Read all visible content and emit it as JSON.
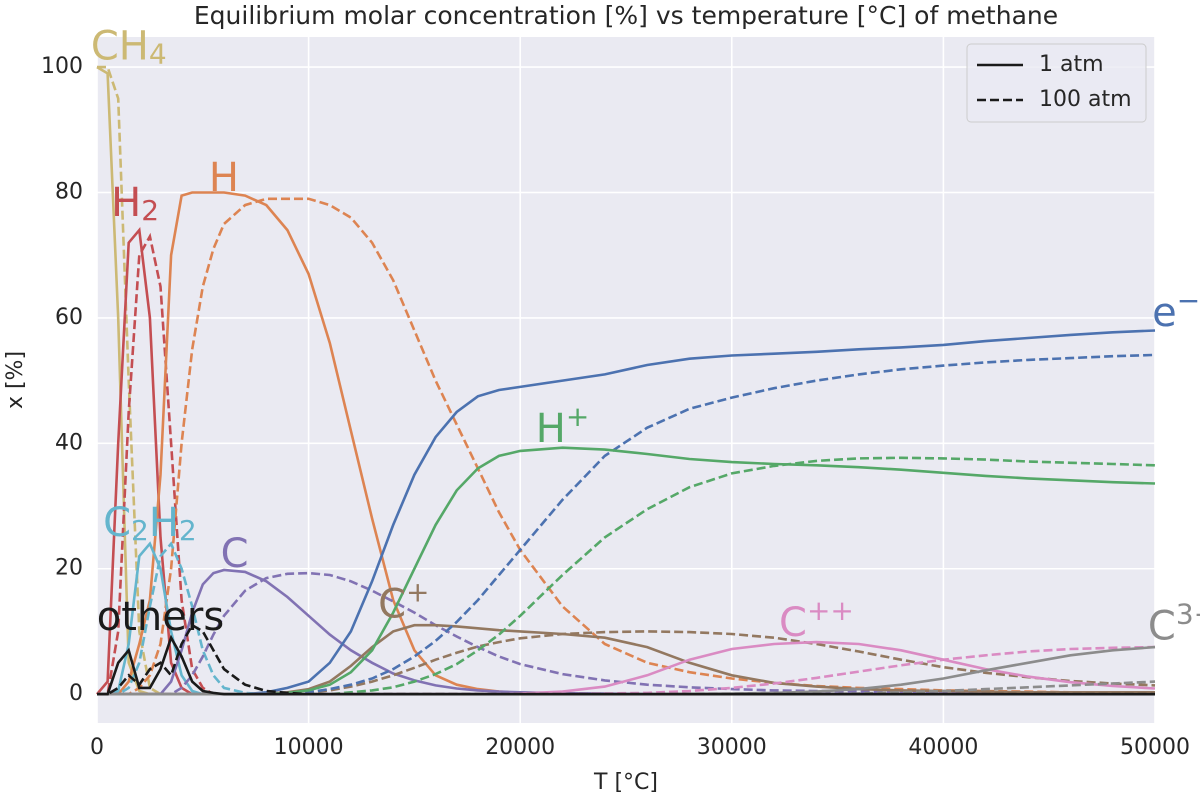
{
  "chart_data": {
    "type": "line",
    "title": "Equilibrium molar concentration [%] vs temperature [°C] of methane",
    "xlabel": "T [°C]",
    "ylabel": "x [%]",
    "xlim": [
      0,
      50000
    ],
    "ylim": [
      -4.6,
      104.8
    ],
    "xticks": [
      0,
      10000,
      20000,
      30000,
      40000,
      50000
    ],
    "yticks": [
      0,
      20,
      40,
      60,
      80,
      100
    ],
    "grid": true,
    "legend": {
      "loc": "upper right",
      "entries": [
        {
          "label": "1 atm",
          "dash": "solid"
        },
        {
          "label": "100 atm",
          "dash": "dashed"
        }
      ]
    },
    "x": [
      0,
      500,
      1000,
      1500,
      2000,
      2500,
      3000,
      3500,
      4000,
      4500,
      5000,
      5500,
      6000,
      7000,
      8000,
      9000,
      10000,
      11000,
      12000,
      13000,
      14000,
      15000,
      16000,
      17000,
      18000,
      19000,
      20000,
      22000,
      24000,
      26000,
      28000,
      30000,
      32000,
      34000,
      36000,
      38000,
      40000,
      42000,
      44000,
      46000,
      48000,
      50000
    ],
    "series": [
      {
        "color": "#ccb974",
        "dash": "solid",
        "values": [
          100,
          99,
          60,
          5,
          0.5,
          0,
          0,
          0,
          0,
          0,
          0,
          0,
          0,
          0,
          0,
          0,
          0,
          0,
          0,
          0,
          0,
          0,
          0,
          0,
          0,
          0,
          0,
          0,
          0,
          0,
          0,
          0,
          0,
          0,
          0,
          0,
          0,
          0,
          0,
          0,
          0,
          0
        ]
      },
      {
        "color": "#ccb974",
        "dash": "dashed",
        "values": [
          100,
          100,
          95,
          50,
          10,
          1,
          0,
          0,
          0,
          0,
          0,
          0,
          0,
          0,
          0,
          0,
          0,
          0,
          0,
          0,
          0,
          0,
          0,
          0,
          0,
          0,
          0,
          0,
          0,
          0,
          0,
          0,
          0,
          0,
          0,
          0,
          0,
          0,
          0,
          0,
          0,
          0
        ]
      },
      {
        "color": "#c44e52",
        "dash": "solid",
        "values": [
          0,
          2,
          40,
          72,
          74,
          60,
          25,
          5,
          1,
          0,
          0,
          0,
          0,
          0,
          0,
          0,
          0,
          0,
          0,
          0,
          0,
          0,
          0,
          0,
          0,
          0,
          0,
          0,
          0,
          0,
          0,
          0,
          0,
          0,
          0,
          0,
          0,
          0,
          0,
          0,
          0,
          0
        ]
      },
      {
        "color": "#c44e52",
        "dash": "dashed",
        "values": [
          0,
          0,
          10,
          45,
          70,
          73,
          65,
          40,
          15,
          4,
          1,
          0,
          0,
          0,
          0,
          0,
          0,
          0,
          0,
          0,
          0,
          0,
          0,
          0,
          0,
          0,
          0,
          0,
          0,
          0,
          0,
          0,
          0,
          0,
          0,
          0,
          0,
          0,
          0,
          0,
          0,
          0
        ]
      },
      {
        "color": "#dd8452",
        "dash": "solid",
        "values": [
          0,
          0,
          0,
          2,
          8,
          15,
          35,
          70,
          79.5,
          80,
          80,
          80,
          80,
          79.5,
          78,
          74,
          67,
          56,
          42,
          28,
          15,
          7,
          3,
          1.5,
          0.8,
          0.4,
          0.2,
          0.1,
          0,
          0,
          0,
          0,
          0,
          0,
          0,
          0,
          0,
          0,
          0,
          0,
          0,
          0
        ]
      },
      {
        "color": "#dd8452",
        "dash": "dashed",
        "values": [
          0,
          0,
          0,
          0,
          1,
          3,
          8,
          20,
          40,
          55,
          65,
          71,
          75,
          78,
          79,
          79,
          79,
          78,
          76,
          72,
          66,
          58,
          50,
          43,
          36,
          29,
          23,
          14,
          8,
          5,
          3.5,
          2.5,
          1.8,
          1.3,
          1,
          0.8,
          0.6,
          0.5,
          0.4,
          0.3,
          0.3,
          0.2
        ]
      },
      {
        "color": "#64b5cd",
        "dash": "solid",
        "values": [
          0,
          0,
          0.5,
          8,
          22,
          24,
          20,
          10,
          3,
          0.5,
          0,
          0,
          0,
          0,
          0,
          0,
          0,
          0,
          0,
          0,
          0,
          0,
          0,
          0,
          0,
          0,
          0,
          0,
          0,
          0,
          0,
          0,
          0,
          0,
          0,
          0,
          0,
          0,
          0,
          0,
          0,
          0
        ]
      },
      {
        "color": "#64b5cd",
        "dash": "dashed",
        "values": [
          0,
          0,
          0,
          1,
          5,
          14,
          22,
          24,
          20,
          14,
          7,
          3,
          1,
          0.2,
          0,
          0,
          0,
          0,
          0,
          0,
          0,
          0,
          0,
          0,
          0,
          0,
          0,
          0,
          0,
          0,
          0,
          0,
          0,
          0,
          0,
          0,
          0,
          0,
          0,
          0,
          0,
          0
        ]
      },
      {
        "color": "#8172b3",
        "dash": "solid",
        "values": [
          0,
          0,
          0,
          0,
          0,
          0,
          0,
          2,
          7,
          13,
          17.5,
          19.3,
          19.8,
          19.5,
          18,
          15.5,
          12.5,
          9.5,
          7,
          5,
          3.3,
          2.2,
          1.4,
          0.9,
          0.6,
          0.4,
          0.3,
          0.15,
          0.1,
          0,
          0,
          0,
          0,
          0,
          0,
          0,
          0,
          0,
          0,
          0,
          0,
          0
        ]
      },
      {
        "color": "#8172b3",
        "dash": "dashed",
        "values": [
          0,
          0,
          0,
          0,
          0,
          0,
          0,
          0,
          1,
          3,
          6,
          9.5,
          12.5,
          16.5,
          18.5,
          19.2,
          19.3,
          19,
          18,
          16.5,
          14.8,
          13,
          11,
          9.2,
          7.5,
          6,
          4.8,
          3.2,
          2.2,
          1.5,
          1.1,
          0.8,
          0.6,
          0.5,
          0.4,
          0.3,
          0.25,
          0.2,
          0.15,
          0.1,
          0.1,
          0.1
        ]
      },
      {
        "color": "#937860",
        "dash": "solid",
        "values": [
          0,
          0,
          0,
          0,
          0,
          0,
          0,
          0,
          0,
          0,
          0,
          0,
          0,
          0,
          0.1,
          0.3,
          0.8,
          2,
          4.5,
          7.5,
          10,
          11,
          11,
          10.8,
          10.5,
          10.2,
          10,
          9.6,
          9,
          7.5,
          5,
          3,
          1.8,
          1.2,
          0.8,
          0.6,
          0.5,
          0.4,
          0.3,
          0.3,
          0.3,
          0.3
        ]
      },
      {
        "color": "#937860",
        "dash": "dashed",
        "values": [
          0,
          0,
          0,
          0,
          0,
          0,
          0,
          0,
          0,
          0,
          0,
          0,
          0,
          0,
          0,
          0.1,
          0.3,
          0.6,
          1.2,
          2,
          3,
          4.2,
          5.5,
          6.6,
          7.6,
          8.3,
          8.9,
          9.6,
          9.9,
          10,
          9.9,
          9.6,
          9,
          8,
          6.8,
          5.5,
          4.3,
          3.4,
          2.7,
          2.1,
          1.7,
          1.4
        ]
      },
      {
        "color": "#4c72b0",
        "dash": "solid",
        "values": [
          0,
          0,
          0,
          0,
          0,
          0,
          0,
          0,
          0,
          0,
          0,
          0,
          0,
          0,
          0.3,
          1,
          2,
          5,
          10,
          18,
          27,
          35,
          41,
          45,
          47.5,
          48.5,
          49,
          50,
          51,
          52.5,
          53.5,
          54,
          54.3,
          54.6,
          55,
          55.3,
          55.7,
          56.3,
          56.8,
          57.3,
          57.7,
          58
        ]
      },
      {
        "color": "#4c72b0",
        "dash": "dashed",
        "values": [
          0,
          0,
          0,
          0,
          0,
          0,
          0,
          0,
          0,
          0,
          0,
          0,
          0,
          0,
          0,
          0.1,
          0.3,
          0.8,
          1.5,
          2.5,
          4,
          6,
          8.5,
          11.5,
          15,
          19,
          23,
          31,
          38,
          42.5,
          45.5,
          47.3,
          48.8,
          50,
          51,
          51.8,
          52.4,
          52.9,
          53.3,
          53.6,
          53.9,
          54.1
        ]
      },
      {
        "color": "#55a868",
        "dash": "solid",
        "values": [
          0,
          0,
          0,
          0,
          0,
          0,
          0,
          0,
          0,
          0,
          0,
          0,
          0,
          0,
          0,
          0.2,
          0.6,
          1.5,
          3.5,
          7,
          13,
          20,
          27,
          32.5,
          36,
          38,
          38.8,
          39.3,
          39,
          38.3,
          37.5,
          37,
          36.7,
          36.5,
          36.2,
          35.8,
          35.3,
          34.8,
          34.4,
          34.1,
          33.8,
          33.6
        ]
      },
      {
        "color": "#55a868",
        "dash": "dashed",
        "values": [
          0,
          0,
          0,
          0,
          0,
          0,
          0,
          0,
          0,
          0,
          0,
          0,
          0,
          0,
          0,
          0,
          0,
          0,
          0.3,
          0.6,
          1.1,
          2,
          3.2,
          4.8,
          7,
          9.5,
          12.5,
          19,
          25,
          29.5,
          33,
          35.2,
          36.4,
          37.2,
          37.6,
          37.7,
          37.6,
          37.4,
          37.1,
          36.9,
          36.7,
          36.5
        ]
      },
      {
        "color": "#da8bc3",
        "dash": "solid",
        "values": [
          0,
          0,
          0,
          0,
          0,
          0,
          0,
          0,
          0,
          0,
          0,
          0,
          0,
          0,
          0,
          0,
          0,
          0,
          0,
          0,
          0,
          0,
          0,
          0,
          0,
          0,
          0.1,
          0.4,
          1.2,
          3,
          5.5,
          7.2,
          8,
          8.3,
          8,
          7,
          5.5,
          4,
          2.8,
          1.9,
          1.3,
          0.9
        ]
      },
      {
        "color": "#da8bc3",
        "dash": "dashed",
        "values": [
          0,
          0,
          0,
          0,
          0,
          0,
          0,
          0,
          0,
          0,
          0,
          0,
          0,
          0,
          0,
          0,
          0,
          0,
          0,
          0,
          0,
          0,
          0,
          0,
          0,
          0,
          0,
          0,
          0.1,
          0.2,
          0.5,
          1,
          1.7,
          2.6,
          3.6,
          4.6,
          5.5,
          6.2,
          6.8,
          7.2,
          7.4,
          7.5
        ]
      },
      {
        "color": "#8c8c8c",
        "dash": "solid",
        "values": [
          0,
          0,
          0,
          0,
          0,
          0,
          0,
          0,
          0,
          0,
          0,
          0,
          0,
          0,
          0,
          0,
          0,
          0,
          0,
          0,
          0,
          0,
          0,
          0,
          0,
          0,
          0,
          0,
          0,
          0,
          0.05,
          0.1,
          0.2,
          0.4,
          0.8,
          1.5,
          2.5,
          3.8,
          5,
          6.2,
          7,
          7.5
        ]
      },
      {
        "color": "#8c8c8c",
        "dash": "dashed",
        "values": [
          0,
          0,
          0,
          0,
          0,
          0,
          0,
          0,
          0,
          0,
          0,
          0,
          0,
          0,
          0,
          0,
          0,
          0,
          0,
          0,
          0,
          0,
          0,
          0,
          0,
          0,
          0,
          0,
          0,
          0,
          0,
          0,
          0,
          0,
          0.1,
          0.3,
          0.5,
          0.8,
          1.1,
          1.4,
          1.7,
          2
        ]
      },
      {
        "color": "#1a1a1a",
        "dash": "solid",
        "values": [
          0,
          0,
          5,
          7,
          1,
          1,
          4,
          9,
          6,
          2,
          0.5,
          0.2,
          0,
          0,
          0,
          0,
          0,
          0,
          0,
          0,
          0,
          0,
          0,
          0,
          0,
          0,
          0,
          0,
          0,
          0,
          0,
          0,
          0,
          0,
          0,
          0,
          0,
          0,
          0,
          0,
          0,
          0
        ]
      },
      {
        "color": "#1a1a1a",
        "dash": "dashed",
        "values": [
          0,
          0,
          1,
          3,
          1.5,
          4,
          5,
          3,
          8,
          11,
          10,
          7,
          4,
          1.5,
          0.5,
          0.2,
          0,
          0,
          0,
          0,
          0,
          0,
          0,
          0,
          0,
          0,
          0,
          0,
          0,
          0,
          0,
          0,
          0,
          0,
          0,
          0,
          0,
          0,
          0,
          0,
          0,
          0
        ]
      }
    ],
    "annotations": [
      {
        "text": "CH",
        "sub": "4",
        "x": 1500,
        "y": 103,
        "color": "#ccb974"
      },
      {
        "text": "H",
        "sub": "2",
        "x": 1800,
        "y": 78,
        "color": "#c44e52"
      },
      {
        "text": "H",
        "x": 6000,
        "y": 82,
        "color": "#dd8452"
      },
      {
        "text": "C",
        "sub": "2",
        "text2": "H",
        "sub2": "2",
        "x": 2500,
        "y": 27,
        "color": "#64b5cd"
      },
      {
        "text": "C",
        "x": 6500,
        "y": 22,
        "color": "#8172b3"
      },
      {
        "text": "others",
        "x": 3000,
        "y": 12,
        "color": "#1a1a1a"
      },
      {
        "text": "C",
        "sup": "+",
        "x": 14500,
        "y": 14,
        "color": "#937860"
      },
      {
        "text": "H",
        "sup": "+",
        "x": 22000,
        "y": 42,
        "color": "#55a868"
      },
      {
        "text": "C",
        "sup": "++",
        "x": 34000,
        "y": 11,
        "color": "#da8bc3"
      },
      {
        "text": "e",
        "sup": "−",
        "x": 51000,
        "y": 60.5,
        "color": "#4c72b0"
      },
      {
        "text": "C",
        "sup": "3+",
        "x": 51300,
        "y": 10.5,
        "color": "#8c8c8c"
      }
    ]
  }
}
